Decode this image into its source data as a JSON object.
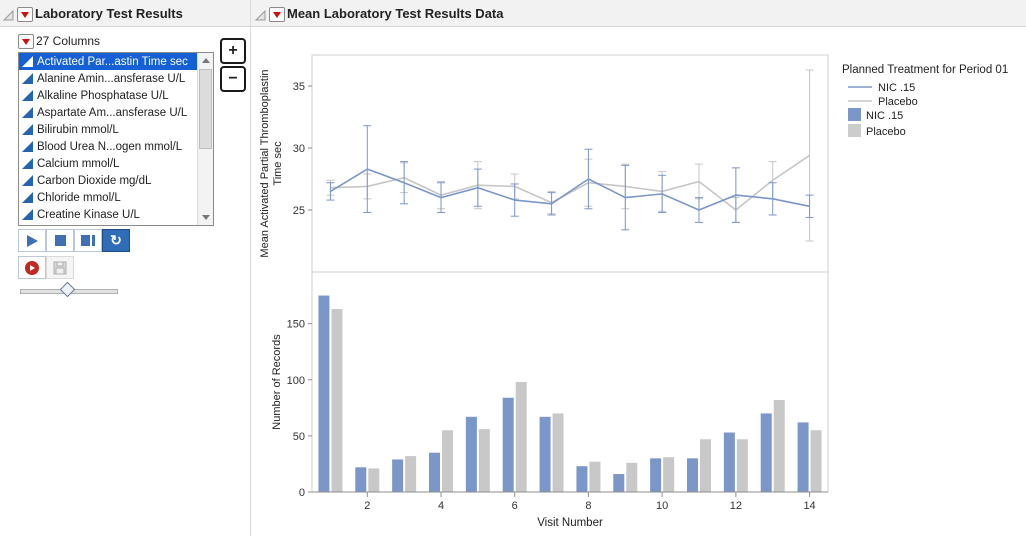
{
  "left_panel": {
    "title": "Laboratory Test Results",
    "columns_header": "27 Columns",
    "columns": [
      {
        "label": "Activated Par...astin Time sec",
        "selected": true
      },
      {
        "label": "Alanine Amin...ansferase U/L",
        "selected": false
      },
      {
        "label": "Alkaline Phosphatase U/L",
        "selected": false
      },
      {
        "label": "Aspartate Am...ansferase U/L",
        "selected": false
      },
      {
        "label": "Bilirubin mmol/L",
        "selected": false
      },
      {
        "label": "Blood Urea N...ogen mmol/L",
        "selected": false
      },
      {
        "label": "Calcium mmol/L",
        "selected": false
      },
      {
        "label": "Carbon Dioxide mg/dL",
        "selected": false
      },
      {
        "label": "Chloride mmol/L",
        "selected": false
      },
      {
        "label": "Creatine Kinase U/L",
        "selected": false
      }
    ],
    "add_button_label": "+",
    "remove_button_label": "−",
    "loop_button_glyph": "↻"
  },
  "main_panel": {
    "title": "Mean Laboratory Test Results Data",
    "legend": {
      "title": "Planned Treatment for Period 01",
      "line_entries": [
        {
          "label": "NIC .15",
          "color": "#7b96c9"
        },
        {
          "label": "Placebo",
          "color": "#c6c6c6"
        }
      ],
      "swatch_entries": [
        {
          "label": "NIC .15",
          "color": "#7b96c9"
        },
        {
          "label": "Placebo",
          "color": "#cccccc"
        }
      ]
    }
  },
  "colors": {
    "nic": "#7b96c9",
    "placebo": "#c8c8c8",
    "selected_row": "#1560d4",
    "axis": "#8e8e8e",
    "frame": "#cfcfcf",
    "red_triangle": "#cc1111"
  },
  "chart_data": [
    {
      "type": "line",
      "title": "",
      "ylabel": "Mean Activated Partial Thromboplastin Time sec",
      "ylabel_lines": [
        "Mean Activated Partial Thromboplastin",
        "Time sec"
      ],
      "x": [
        1,
        2,
        3,
        4,
        5,
        6,
        7,
        8,
        9,
        10,
        11,
        12,
        13,
        14
      ],
      "ylim": [
        20,
        37.5
      ],
      "yticks": [
        25,
        30,
        35
      ],
      "legend_position": "right",
      "grid": false,
      "series": [
        {
          "name": "NIC .15",
          "color": "#7b96c9",
          "values": [
            26.5,
            28.3,
            27.2,
            26.0,
            26.8,
            25.8,
            25.5,
            27.5,
            26.0,
            26.3,
            25.0,
            26.2,
            25.9,
            25.3
          ],
          "errors": [
            0.7,
            3.5,
            1.7,
            1.2,
            1.5,
            1.3,
            0.9,
            2.4,
            2.6,
            1.5,
            1.0,
            2.2,
            1.3,
            0.9
          ]
        },
        {
          "name": "Placebo",
          "color": "#c6c6c6",
          "values": [
            26.8,
            26.9,
            27.6,
            26.2,
            27.0,
            26.9,
            25.6,
            27.2,
            26.9,
            26.5,
            27.3,
            25.0,
            27.4,
            29.4
          ],
          "errors": [
            0.6,
            1.0,
            1.2,
            1.1,
            1.9,
            1.0,
            0.9,
            1.9,
            1.8,
            1.6,
            1.4,
            1.0,
            1.5,
            6.9
          ]
        }
      ]
    },
    {
      "type": "bar",
      "title": "",
      "xlabel": "Visit Number",
      "ylabel": "Number of Records",
      "categories": [
        1,
        2,
        3,
        4,
        5,
        6,
        7,
        8,
        9,
        10,
        11,
        12,
        13,
        14
      ],
      "xticks": [
        2,
        4,
        6,
        8,
        10,
        12,
        14
      ],
      "ylim": [
        0,
        196
      ],
      "yticks": [
        0,
        50,
        100,
        150
      ],
      "grid": false,
      "series": [
        {
          "name": "NIC .15",
          "color": "#7b96c9",
          "values": [
            175,
            22,
            29,
            35,
            67,
            84,
            67,
            23,
            16,
            30,
            30,
            53,
            70,
            62
          ]
        },
        {
          "name": "Placebo",
          "color": "#c8c8c8",
          "values": [
            163,
            21,
            32,
            55,
            56,
            98,
            70,
            27,
            26,
            31,
            47,
            47,
            82,
            55
          ]
        }
      ]
    }
  ]
}
